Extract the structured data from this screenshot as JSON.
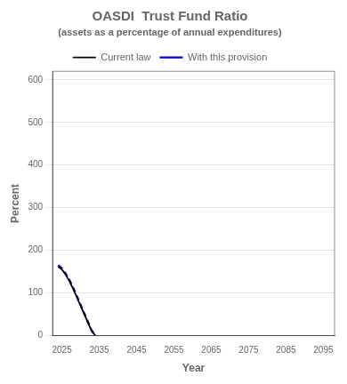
{
  "chart_data": {
    "type": "line",
    "title": "OASDI  Trust Fund Ratio",
    "subtitle": "(assets as a percentage of annual expenditures)",
    "xlabel": "Year",
    "ylabel": "Percent",
    "xlim": [
      2022.5,
      2098
    ],
    "xticks": [
      2025,
      2035,
      2045,
      2055,
      2065,
      2075,
      2085,
      2095
    ],
    "ylim": [
      0,
      620
    ],
    "yticks": [
      0,
      100,
      200,
      300,
      400,
      500,
      600
    ],
    "grid": "y",
    "legend": "upper center",
    "x": [
      2024,
      2025,
      2026,
      2027,
      2028,
      2029,
      2030,
      2031,
      2032,
      2033,
      2034
    ],
    "series": [
      {
        "name": "Current law",
        "color": "#000000",
        "line_style": "solid",
        "values": [
          162,
          155,
          143,
          128,
          110,
          90,
          70,
          50,
          30,
          10,
          0
        ]
      },
      {
        "name": "With this provision",
        "color": "#0000cc",
        "line_style": "dashed",
        "values": [
          165,
          158,
          146,
          131,
          113,
          93,
          73,
          52,
          32,
          12,
          2
        ]
      }
    ]
  }
}
